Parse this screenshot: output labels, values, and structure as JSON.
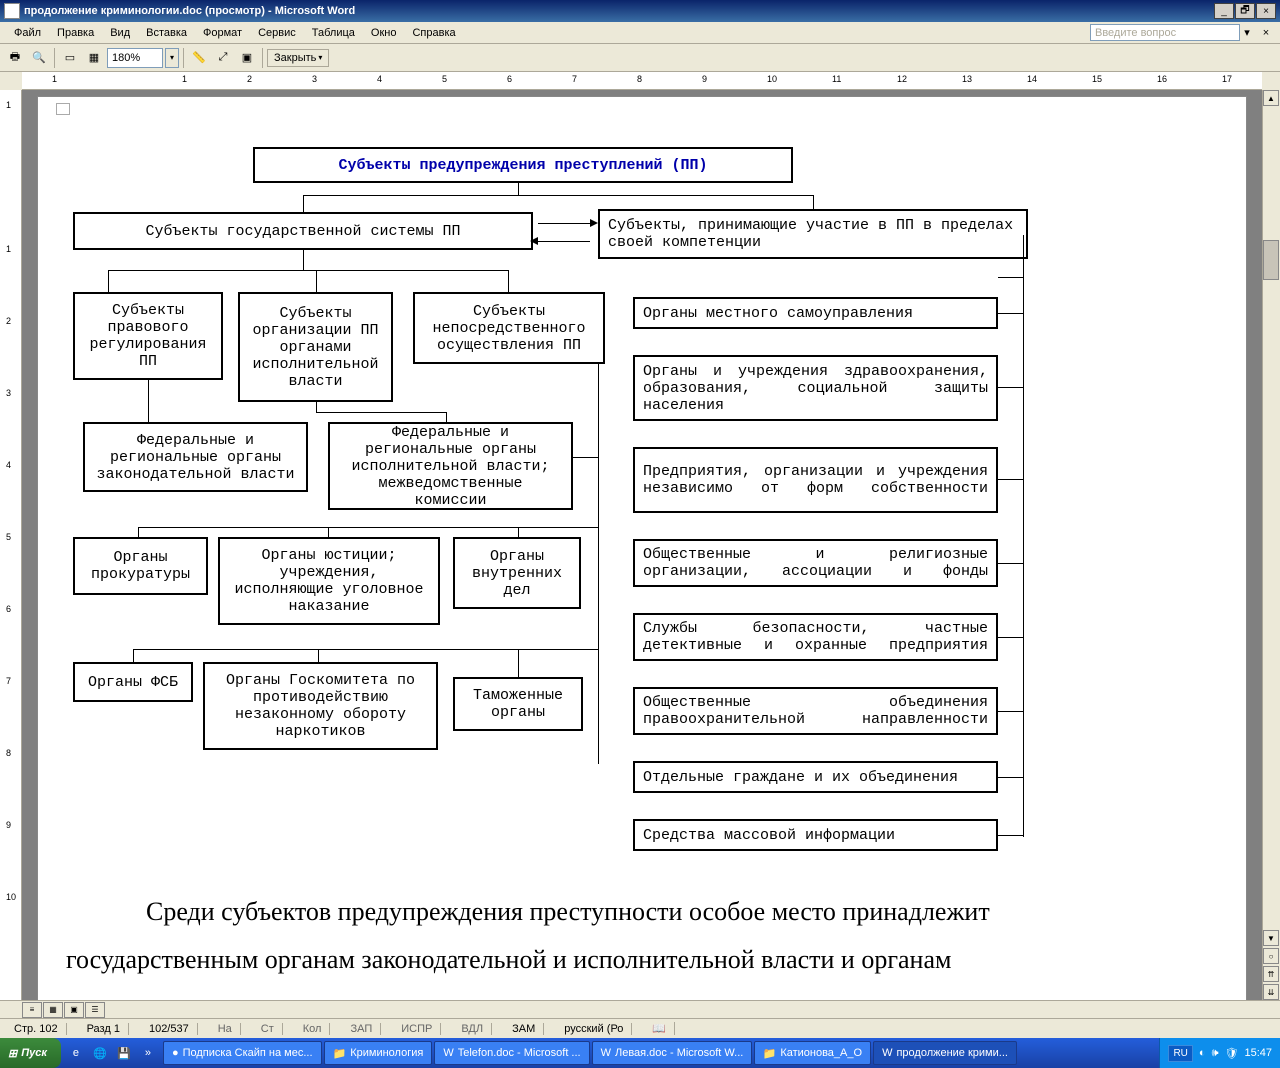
{
  "window": {
    "title": "продолжение криминологии.doc (просмотр) - Microsoft Word"
  },
  "menu": {
    "file": "Файл",
    "edit": "Правка",
    "view": "Вид",
    "insert": "Вставка",
    "format": "Формат",
    "service": "Сервис",
    "table": "Таблица",
    "window": "Окно",
    "help": "Справка",
    "ask_placeholder": "Введите вопрос"
  },
  "toolbar": {
    "zoom": "180%",
    "close_label": "Закрыть"
  },
  "ruler": {
    "h_numbers": [
      "1",
      "",
      "1",
      "2",
      "3",
      "4",
      "5",
      "6",
      "7",
      "8",
      "9",
      "10",
      "11",
      "12",
      "13",
      "14",
      "15",
      "16",
      "17"
    ],
    "v_numbers": [
      "1",
      "",
      "1",
      "2",
      "3",
      "4",
      "5",
      "6",
      "7",
      "8",
      "9",
      "10"
    ]
  },
  "diagram": {
    "title": "Субъекты предупреждения преступлений (ПП)",
    "left_main": "Субъекты государственной системы ПП",
    "right_main": "Субъекты, принимающие участие в ПП в пределах своей компетенции",
    "l1a": "Субъекты правового регулирования ПП",
    "l1b": "Субъекты организации ПП органами исполнительной власти",
    "l1c": "Субъекты непосредственного осуществления ПП",
    "l2a": "Федеральные и региональные органы законодательной власти",
    "l2b": "Федеральные и региональные органы исполнительной власти; межведомственные комиссии",
    "l3a": "Органы прокуратуры",
    "l3b": "Органы юстиции; учреждения, исполняющие уголовное наказание",
    "l3c": "Органы внутренних дел",
    "l4a": "Органы ФСБ",
    "l4b": "Органы Госкомитета по противодействию незаконному обороту наркотиков",
    "l4c": "Таможенные органы",
    "r1": "Органы местного самоуправления",
    "r2": "Органы и учреждения здравоохранения, образования, социальной защиты населения",
    "r3": "Предприятия, организации и учреждения независимо от форм собственности",
    "r4": "Общественные и религиозные организации, ассоциации и фонды",
    "r5": "Службы безопасности, частные детективные и охранные предприятия",
    "r6": "Общественные объединения правоохранительной направленности",
    "r7": "Отдельные граждане и их объединения",
    "r8": "Средства массовой информации"
  },
  "bodytext": {
    "line1": "Среди субъектов предупреждения преступности особое место принадлежит",
    "line2": "государственным органам законодательной и исполнительной власти и органам"
  },
  "status": {
    "page": "Стр. 102",
    "section": "Разд 1",
    "pages": "102/537",
    "at": "На",
    "ln": "Ст",
    "col": "Кол",
    "zap": "ЗАП",
    "ispr": "ИСПР",
    "vdl": "ВДЛ",
    "zam": "ЗАМ",
    "lang": "русский (Ро"
  },
  "taskbar": {
    "start": "Пуск",
    "items": [
      {
        "label": "Подписка Скайп на мес...",
        "active": false,
        "icon": "●"
      },
      {
        "label": "Криминология",
        "active": false,
        "icon": "📁"
      },
      {
        "label": "Telefon.doc - Microsoft ...",
        "active": false,
        "icon": "W"
      },
      {
        "label": "Левая.doc - Microsoft W...",
        "active": false,
        "icon": "W"
      },
      {
        "label": "Катионова_А_О",
        "active": false,
        "icon": "📁"
      },
      {
        "label": "продолжение крими...",
        "active": true,
        "icon": "W"
      }
    ],
    "lang": "RU",
    "clock": "15:47"
  },
  "colors": {
    "titlebar_grad_a": "#0a246a",
    "titlebar_grad_b": "#3a6ea5",
    "chrome_bg": "#ece9d8",
    "border": "#aca899",
    "page_bg": "#ffffff",
    "docarea_bg": "#808080",
    "diagram_title_color": "#0000aa",
    "taskbar_grad_a": "#245edb",
    "taskbar_grad_b": "#1941a5",
    "start_grad_a": "#3c8b3c",
    "start_grad_b": "#286a28"
  }
}
